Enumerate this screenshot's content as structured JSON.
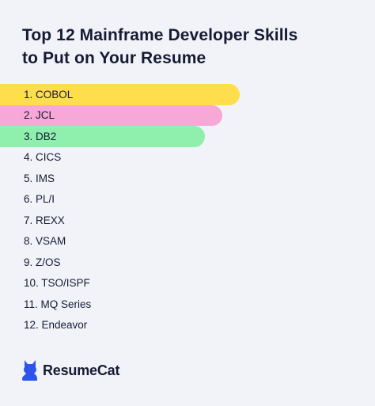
{
  "title": {
    "line1": "Top 12 Mainframe Developer Skills",
    "line2": "to Put on Your Resume"
  },
  "skills": [
    {
      "label": "1. COBOL",
      "color": "#ffde4d"
    },
    {
      "label": "2. JCL",
      "color": "#f7a8d6"
    },
    {
      "label": "3. DB2",
      "color": "#8ef0ac"
    },
    {
      "label": "4. CICS"
    },
    {
      "label": "5. IMS"
    },
    {
      "label": "6. PL/I"
    },
    {
      "label": "7. REXX"
    },
    {
      "label": "8. VSAM"
    },
    {
      "label": "9. Z/OS"
    },
    {
      "label": "10. TSO/ISPF"
    },
    {
      "label": "11. MQ Series"
    },
    {
      "label": "12. Endeavor"
    }
  ],
  "brand": {
    "name": "ResumeCat",
    "icon": "cat-logo-icon",
    "color": "#2f54eb"
  }
}
